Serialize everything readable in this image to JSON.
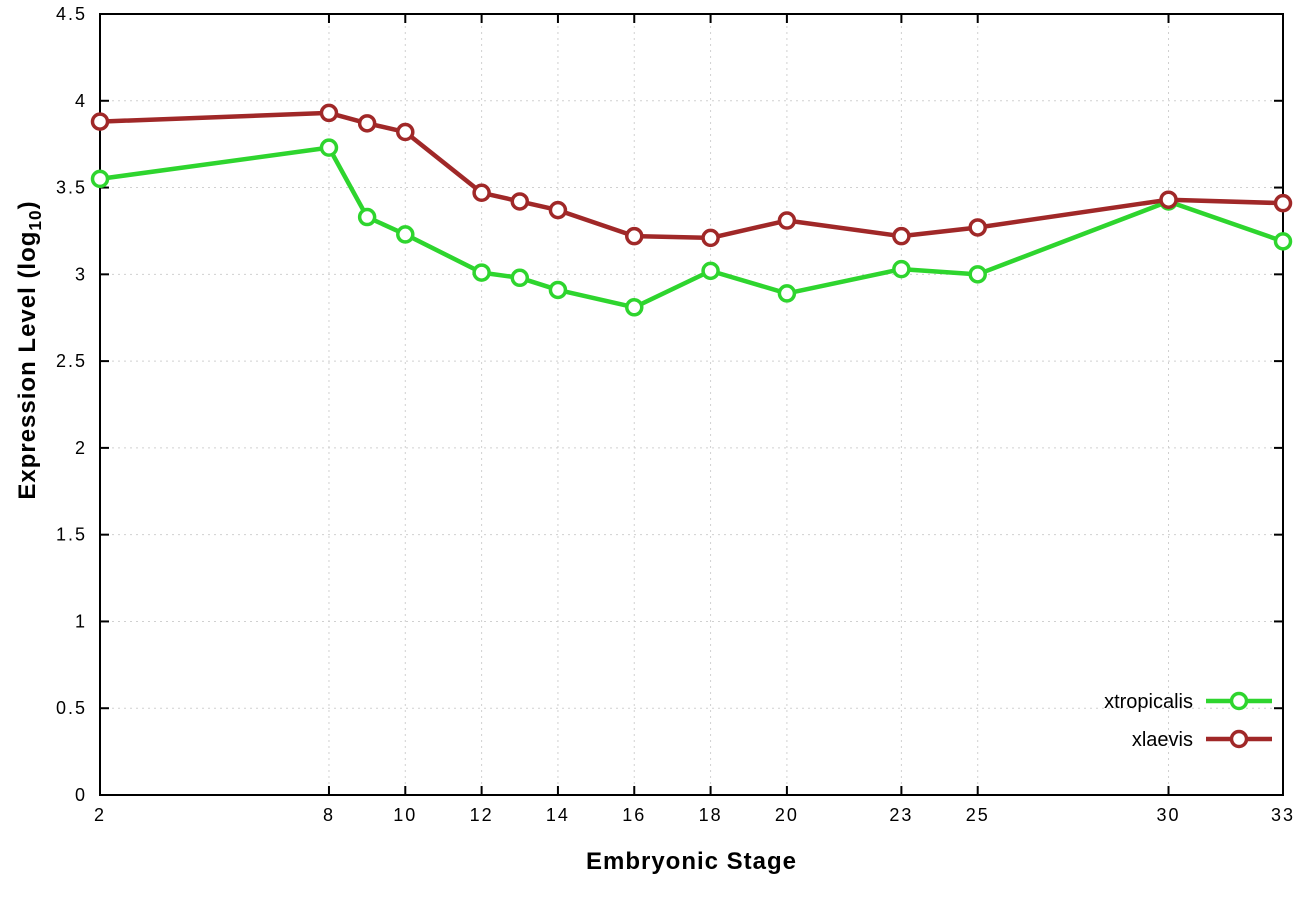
{
  "page": {
    "background": "#ffffff",
    "grid_color": "#d0d0d0",
    "border_color": "#000000"
  },
  "chart_data": {
    "type": "line",
    "x": [
      2,
      8,
      9,
      10,
      12,
      13,
      14,
      16,
      18,
      20,
      23,
      25,
      30,
      33
    ],
    "series": [
      {
        "name": "xtropicalis",
        "color": "#2ed52e",
        "marker": "open-circle",
        "values": [
          3.55,
          3.73,
          3.33,
          3.23,
          3.01,
          2.98,
          2.91,
          2.81,
          3.02,
          2.89,
          3.03,
          3.0,
          3.42,
          3.19
        ]
      },
      {
        "name": "xlaevis",
        "color": "#a02828",
        "marker": "open-circle",
        "values": [
          3.88,
          3.93,
          3.87,
          3.82,
          3.47,
          3.42,
          3.37,
          3.22,
          3.21,
          3.31,
          3.22,
          3.27,
          3.43,
          3.41
        ]
      }
    ],
    "xlabel": "Embryonic Stage",
    "ylabel": "Expression Level (log10)",
    "ylabel_parts": {
      "main": "Expression Level (log",
      "sub": "10",
      "close": ")"
    },
    "xlim": [
      2,
      33
    ],
    "ylim": [
      0,
      4.5
    ],
    "xticks": [
      2,
      8,
      10,
      12,
      14,
      16,
      18,
      20,
      23,
      25,
      30,
      33
    ],
    "yticks": [
      "0",
      "0.5",
      "1",
      "1.5",
      "2",
      "2.5",
      "3",
      "3.5",
      "4",
      "4.5"
    ],
    "grid": true,
    "legend_position": "inside-bottom-right"
  }
}
